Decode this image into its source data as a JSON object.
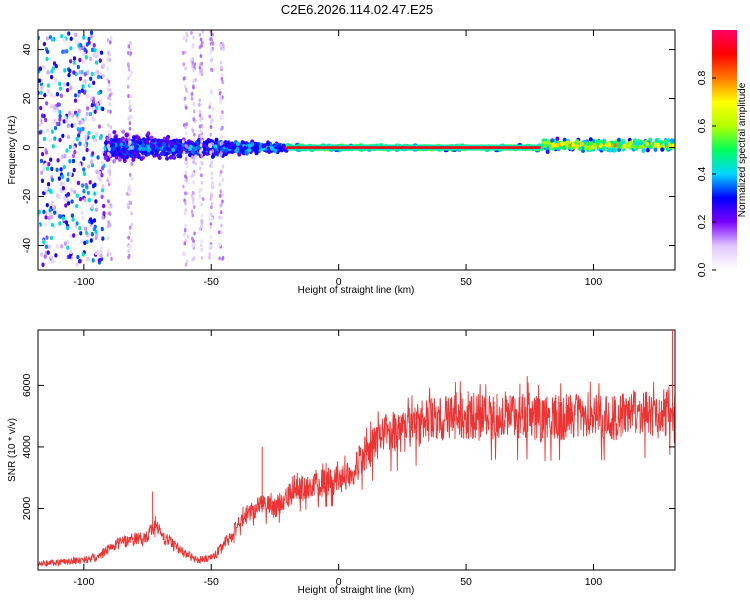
{
  "title": "C2E6.2026.114.02.47.E25",
  "chart_data": [
    {
      "type": "heatmap",
      "xlabel": "Height of straight line (km)",
      "ylabel": "Frequency (Hz)",
      "xlim": [
        -118,
        132
      ],
      "ylim": [
        -50,
        48
      ],
      "x_ticks": [
        -100,
        -50,
        0,
        50,
        100
      ],
      "y_ticks": [
        -40,
        -20,
        0,
        20,
        40
      ],
      "x_tick_labels": [
        "-100",
        "-50",
        "0",
        "50",
        "100"
      ],
      "y_tick_labels": [
        "-40",
        "-20",
        "0",
        "20",
        "40"
      ],
      "colorbar": {
        "label": "Normalized spectral amplitude",
        "range": [
          0,
          1
        ],
        "ticks": [
          0.0,
          0.2,
          0.4,
          0.6,
          0.8
        ],
        "tick_labels": [
          "0.0",
          "0.2",
          "0.4",
          "0.6",
          "0.8"
        ],
        "colormap": [
          "#ffffff",
          "#e0c8ff",
          "#7b00ff",
          "#0000ff",
          "#00d7ff",
          "#00ff5a",
          "#b4ff00",
          "#ffff00",
          "#ff7800",
          "#ff0000",
          "#ff0064"
        ]
      },
      "features": [
        {
          "x_range": [
            -118,
            -92
          ],
          "freq_spread": 48,
          "amplitude": 0.3
        },
        {
          "x_range": [
            -92,
            -20
          ],
          "freq_center": 0,
          "freq_spread": 8,
          "amplitude": 0.4
        },
        {
          "x_range": [
            -20,
            80
          ],
          "freq_center": 0,
          "freq_spread": 1.5,
          "amplitude": 0.95
        },
        {
          "x_range": [
            80,
            132
          ],
          "freq_center": 1,
          "freq_spread": 3,
          "amplitude": 0.75
        }
      ]
    },
    {
      "type": "line",
      "xlabel": "Height of straight line (km)",
      "ylabel": "SNR (10 * v/v)",
      "xlim": [
        -118,
        132
      ],
      "ylim": [
        0,
        7800
      ],
      "x_ticks": [
        -100,
        -50,
        0,
        50,
        100
      ],
      "y_ticks": [
        2000,
        4000,
        6000
      ],
      "x_tick_labels": [
        "-100",
        "-50",
        "0",
        "50",
        "100"
      ],
      "y_tick_labels": [
        "2000",
        "4000",
        "6000"
      ],
      "color": "#ee3333",
      "series": [
        {
          "x": [
            -118,
            -110,
            -100,
            -95,
            -90,
            -85,
            -80,
            -75,
            -72,
            -70,
            -68,
            -65,
            -62,
            -60,
            -58,
            -55,
            -50,
            -48,
            -45,
            -42,
            -40,
            -38,
            -35,
            -32,
            -30,
            -28,
            -25,
            -22,
            -20,
            -18,
            -15,
            -12,
            -10,
            -5,
            0,
            5,
            10,
            15,
            20,
            25,
            30,
            35,
            40,
            45,
            50,
            55,
            60,
            65,
            70,
            75,
            80,
            85,
            90,
            95,
            100,
            105,
            110,
            115,
            120,
            125,
            130,
            132
          ],
          "y": [
            200,
            260,
            320,
            420,
            700,
            900,
            1000,
            1100,
            1500,
            1200,
            1000,
            850,
            650,
            550,
            420,
            320,
            380,
            550,
            850,
            1100,
            1350,
            1650,
            1900,
            2100,
            2150,
            2050,
            2050,
            2200,
            2350,
            2500,
            2650,
            2750,
            2800,
            2850,
            2900,
            3200,
            3700,
            4200,
            4450,
            4500,
            4700,
            4850,
            4900,
            5000,
            5050,
            4950,
            4950,
            5050,
            4950,
            5000,
            4900,
            4950,
            5000,
            5050,
            5000,
            4950,
            5000,
            5100,
            5050,
            5000,
            5200,
            4800
          ]
        }
      ],
      "annotations": [
        {
          "x": -73,
          "y": 2550
        },
        {
          "x": -30,
          "y": 4000
        },
        {
          "x": 48,
          "y": 5750
        },
        {
          "x": 74,
          "y": 6300
        },
        {
          "x": 131,
          "y": 7800
        }
      ]
    }
  ]
}
